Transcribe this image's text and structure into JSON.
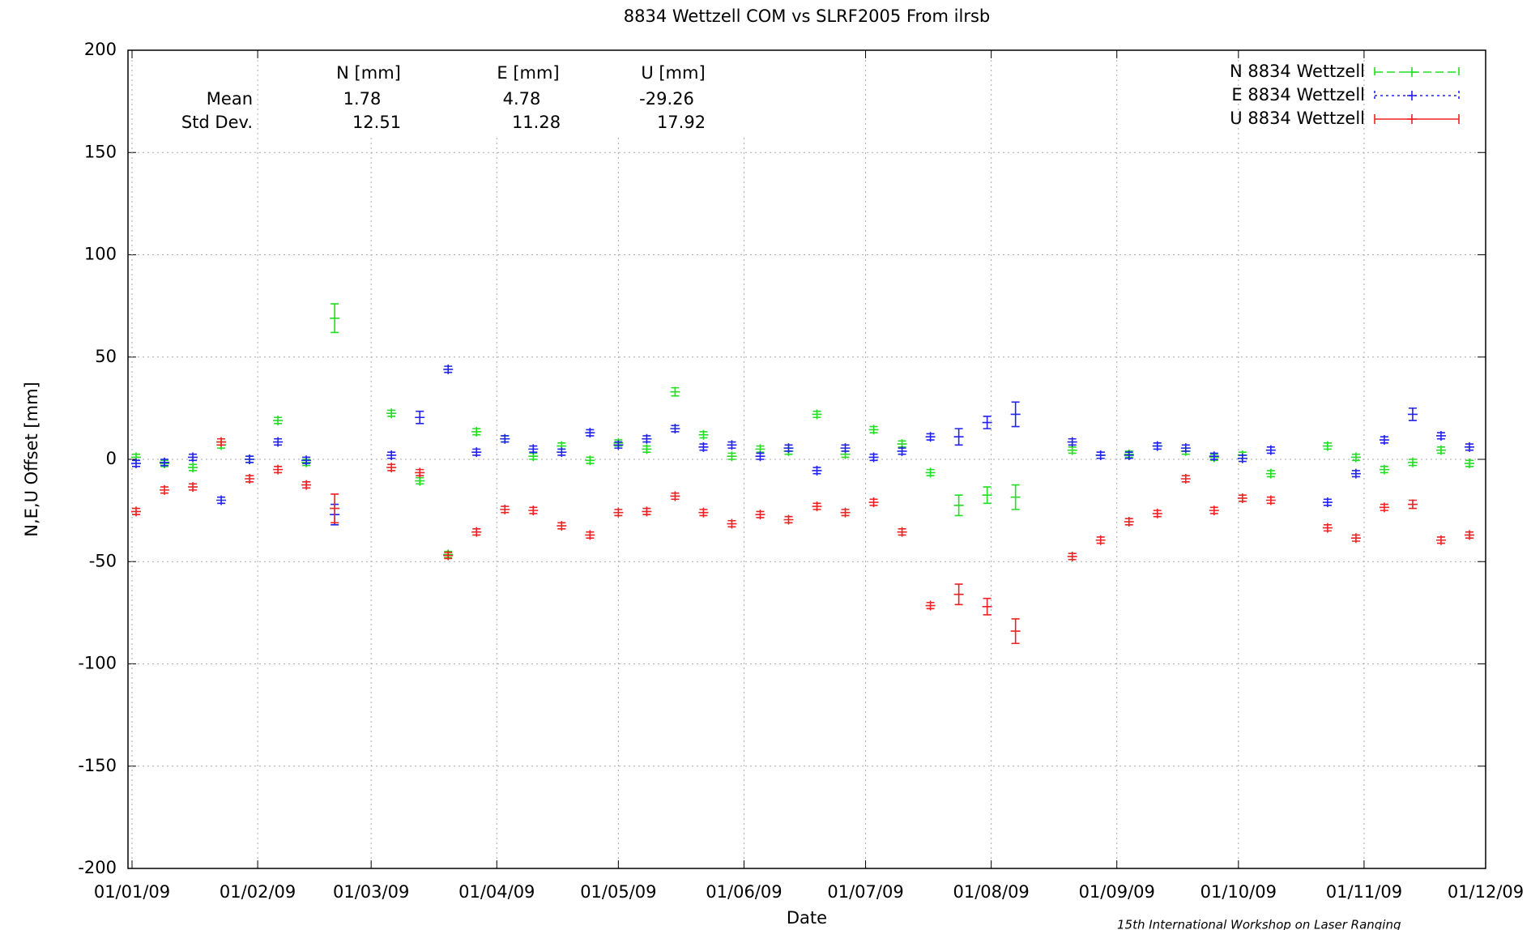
{
  "chart_data": {
    "type": "errorbar",
    "title": "8834 Wettzell COM vs SLRF2005 From ilrsb",
    "x_label": "Date",
    "y_label": "N,E,U Offset [mm]",
    "footer": "15th International Workshop on Laser Ranging",
    "grid": true,
    "legend": "top-right",
    "xlim": [
      "2008-12-31",
      "2009-12-01"
    ],
    "xticks": [
      {
        "value": "2009-01-01",
        "label": "01/01/09"
      },
      {
        "value": "2009-02-01",
        "label": "01/02/09"
      },
      {
        "value": "2009-03-01",
        "label": "01/03/09"
      },
      {
        "value": "2009-04-01",
        "label": "01/04/09"
      },
      {
        "value": "2009-05-01",
        "label": "01/05/09"
      },
      {
        "value": "2009-06-01",
        "label": "01/06/09"
      },
      {
        "value": "2009-07-01",
        "label": "01/07/09"
      },
      {
        "value": "2009-08-01",
        "label": "01/08/09"
      },
      {
        "value": "2009-09-01",
        "label": "01/09/09"
      },
      {
        "value": "2009-10-01",
        "label": "01/10/09"
      },
      {
        "value": "2009-11-01",
        "label": "01/11/09"
      },
      {
        "value": "2009-12-01",
        "label": "01/12/09"
      }
    ],
    "ylim": [
      -200,
      200
    ],
    "yticks": [
      -200,
      -150,
      -100,
      -50,
      0,
      50,
      100,
      150,
      200
    ],
    "x": [
      "2009-01-02",
      "2009-01-09",
      "2009-01-16",
      "2009-01-23",
      "2009-01-30",
      "2009-02-06",
      "2009-02-13",
      "2009-02-20",
      "2009-02-27",
      "2009-03-06",
      "2009-03-13",
      "2009-03-20",
      "2009-03-27",
      "2009-04-03",
      "2009-04-10",
      "2009-04-17",
      "2009-04-24",
      "2009-05-01",
      "2009-05-08",
      "2009-05-15",
      "2009-05-22",
      "2009-05-29",
      "2009-06-05",
      "2009-06-12",
      "2009-06-19",
      "2009-06-26",
      "2009-07-03",
      "2009-07-10",
      "2009-07-17",
      "2009-07-24",
      "2009-07-31",
      "2009-08-07",
      "2009-08-14",
      "2009-08-21",
      "2009-08-28",
      "2009-09-04",
      "2009-09-11",
      "2009-09-18",
      "2009-09-25",
      "2009-10-02",
      "2009-10-09",
      "2009-10-16",
      "2009-10-23",
      "2009-10-30",
      "2009-11-06",
      "2009-11-13",
      "2009-11-20",
      "2009-11-27"
    ],
    "series": [
      {
        "name": "N 8834 Wettzell",
        "color": "#22dd22",
        "line_style": "dashed",
        "values": [
          1,
          -2,
          -4,
          7,
          0,
          19,
          -1.5,
          69,
          null,
          22.5,
          -10.5,
          -46.5,
          13.5,
          10,
          1.5,
          6.5,
          -0.5,
          8,
          5,
          33,
          12,
          1.5,
          5,
          4,
          22,
          2.5,
          14.5,
          7.5,
          -6.5,
          -22.5,
          -17.5,
          -18.5,
          null,
          4.5,
          2,
          2.5,
          6.5,
          4,
          1,
          2,
          -7,
          null,
          6.5,
          1,
          -5,
          -1.5,
          4.5,
          -2
        ],
        "errors": [
          1.5,
          1.5,
          1.5,
          1.5,
          1.5,
          1.5,
          1.5,
          7,
          null,
          1.5,
          1.5,
          1.5,
          1.5,
          1.5,
          1.5,
          1.5,
          1.5,
          1.5,
          1.5,
          2,
          1.5,
          1.5,
          1.5,
          1.5,
          1.5,
          1.5,
          1.5,
          1.5,
          1.5,
          5,
          4,
          6,
          null,
          1.5,
          1.5,
          1.5,
          1.5,
          1.5,
          1.5,
          1.5,
          1.5,
          null,
          1.5,
          1.5,
          1.5,
          1.5,
          1.5,
          1.5
        ]
      },
      {
        "name": "E 8834 Wettzell",
        "color": "#2222ee",
        "line_style": "dotted",
        "values": [
          -2,
          -1.5,
          1,
          -20,
          0,
          8.5,
          -0.5,
          -27,
          null,
          2,
          20.5,
          44,
          3.5,
          10,
          5,
          3.5,
          13,
          7,
          10,
          15,
          6,
          7,
          1.5,
          5.5,
          -5.5,
          5.5,
          1,
          4,
          11,
          11,
          18,
          22,
          null,
          8.5,
          2,
          2,
          6.5,
          5.5,
          1.5,
          0.5,
          4.5,
          null,
          -21,
          -7,
          9.5,
          22,
          11.5,
          6
        ],
        "errors": [
          1.5,
          1.5,
          1.5,
          1.5,
          1.5,
          1.5,
          1.5,
          5,
          null,
          1.5,
          3,
          1.5,
          1.5,
          1.5,
          1.5,
          1.5,
          1.5,
          1.5,
          1.5,
          1.5,
          1.5,
          1.5,
          1.5,
          1.5,
          1.5,
          1.5,
          1.5,
          1.5,
          1.5,
          4,
          3,
          6,
          null,
          1.5,
          1.5,
          1.5,
          1.5,
          1.5,
          1.5,
          1.5,
          1.5,
          null,
          1.5,
          1.5,
          1.5,
          3,
          1.5,
          1.5
        ]
      },
      {
        "name": "U 8834 Wettzell",
        "color": "#ee2222",
        "line_style": "solid",
        "values": [
          -25.5,
          -15,
          -13.5,
          8.5,
          -9.5,
          -5,
          -12.5,
          -24,
          null,
          -4,
          -6.5,
          -47,
          -35.5,
          -24.5,
          -25,
          -32.5,
          -37,
          -26,
          -25.5,
          -18,
          -26,
          -31.5,
          -27,
          -29.5,
          -23,
          -26,
          -21,
          -35.5,
          -71.5,
          -66,
          -72,
          -84,
          null,
          -47.5,
          -39.5,
          -30.5,
          -26.5,
          -9.5,
          -25,
          -19,
          -20,
          null,
          -33.5,
          -38.5,
          -23.5,
          -22,
          -39.5,
          -37
        ],
        "errors": [
          1.5,
          1.5,
          1.5,
          1.5,
          1.5,
          1.5,
          1.5,
          7,
          null,
          1.5,
          1.5,
          1.5,
          1.5,
          1.5,
          1.5,
          1.5,
          1.5,
          1.5,
          1.5,
          1.5,
          1.5,
          1.5,
          1.5,
          1.5,
          1.5,
          1.5,
          1.5,
          1.5,
          1.5,
          5,
          4,
          6,
          null,
          1.5,
          1.5,
          1.5,
          1.5,
          1.5,
          1.5,
          1.5,
          1.5,
          null,
          1.5,
          1.5,
          1.5,
          2,
          1.5,
          1.5
        ]
      }
    ],
    "stats": {
      "headers": [
        "N [mm]",
        "E [mm]",
        "U [mm]"
      ],
      "rows": [
        {
          "label": "Mean",
          "values": [
            1.78,
            4.78,
            -29.26
          ]
        },
        {
          "label": "Std Dev.",
          "values": [
            12.51,
            11.28,
            17.92
          ]
        }
      ]
    }
  }
}
